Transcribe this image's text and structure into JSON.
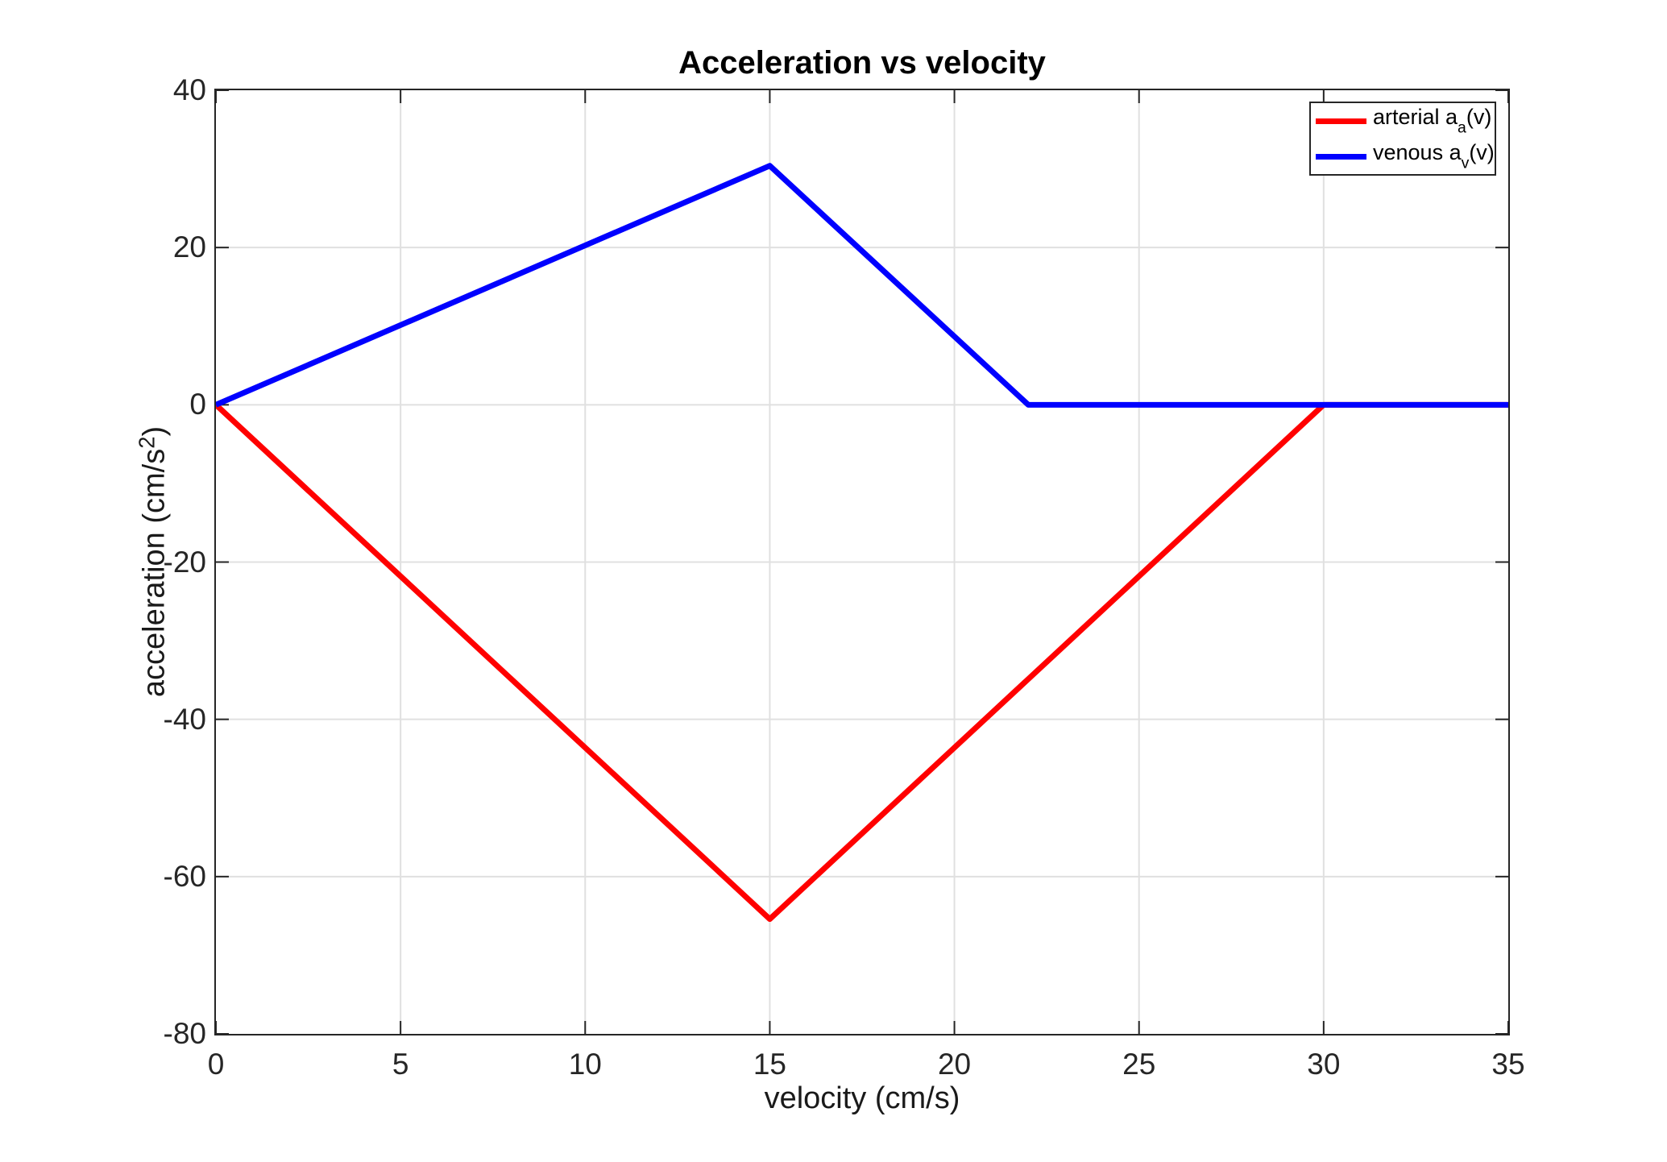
{
  "figure": {
    "title": "Acceleration vs velocity",
    "x_axis": {
      "label": "velocity (cm/s)",
      "tick_labels": [
        "0",
        "5",
        "10",
        "15",
        "20",
        "25",
        "30",
        "35"
      ]
    },
    "y_axis": {
      "label_prefix": "acceleration (cm/s",
      "label_sup": "2",
      "label_suffix": ")",
      "tick_labels": [
        "40",
        "20",
        "0",
        "-20",
        "-40",
        "-60",
        "-80"
      ]
    },
    "legend": {
      "items": [
        {
          "prefix": "arterial a",
          "sub": "a",
          "suffix": "(v)",
          "color": "#FF0000"
        },
        {
          "prefix": "venous a",
          "sub": "v",
          "suffix": "(v)",
          "color": "#0000FF"
        }
      ]
    }
  },
  "chart_data": {
    "type": "line",
    "title": "Acceleration vs velocity",
    "xlabel": "velocity (cm/s)",
    "ylabel": "acceleration (cm/s^2)",
    "xlim": [
      0,
      35
    ],
    "ylim": [
      -80,
      40
    ],
    "x_ticks": [
      0,
      5,
      10,
      15,
      20,
      25,
      30,
      35
    ],
    "y_ticks": [
      40,
      20,
      0,
      -20,
      -40,
      -60,
      -80
    ],
    "grid": true,
    "legend_position": "upper-right",
    "series": [
      {
        "name": "arterial a_a(v)",
        "color": "#FF0000",
        "points": [
          [
            0,
            0
          ],
          [
            15,
            -65.4
          ],
          [
            30,
            0
          ],
          [
            35,
            0
          ]
        ]
      },
      {
        "name": "venous a_v(v)",
        "color": "#0000FF",
        "points": [
          [
            0,
            0
          ],
          [
            15,
            30.4
          ],
          [
            22,
            0
          ],
          [
            35,
            0
          ]
        ]
      }
    ],
    "colors": {
      "grid": "#E0E0E0",
      "axes": "#262626",
      "tick_text": "#262626",
      "background": "#FFFFFF"
    }
  }
}
